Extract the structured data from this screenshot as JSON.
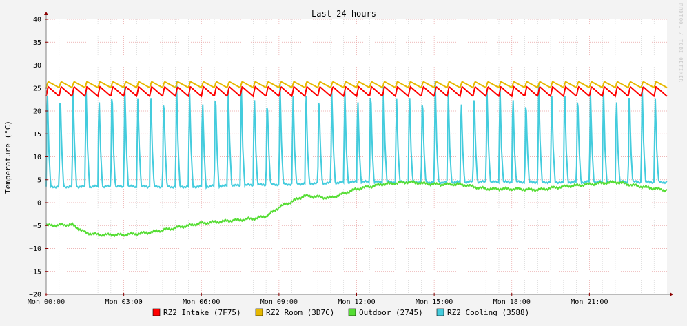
{
  "chart_data": {
    "type": "line",
    "title": "Last 24 hours",
    "ylabel": "Temperature (°C)",
    "xlabel": "",
    "watermark": "RRDTOOL / TOBI OETIKER",
    "ylim": [
      -20,
      40
    ],
    "y_ticks": [
      40,
      35,
      30,
      25,
      20,
      15,
      10,
      5,
      0,
      -5,
      -10,
      -15,
      -20
    ],
    "xlim": [
      "Mon 00:00",
      "Mon 24:00"
    ],
    "x_ticks": [
      "Mon 00:00",
      "Mon 03:00",
      "Mon 06:00",
      "Mon 09:00",
      "Mon 12:00",
      "Mon 15:00",
      "Mon 18:00",
      "Mon 21:00"
    ],
    "grid": true,
    "legend_position": "bottom",
    "colors": {
      "background": "#f3f3f3",
      "plot_background": "#ffffff",
      "grid_major": "#e8a0a0",
      "grid_minor": "#cccccc",
      "axis": "#808080",
      "arrow": "#8b0000"
    },
    "series": [
      {
        "name": "RZ2 Intake (7F75)",
        "color": "#ff0000",
        "pattern": "sawtooth",
        "period_h": 0.5,
        "min": 23.2,
        "max": 25.3,
        "hours": [
          0,
          6,
          12,
          18,
          24
        ],
        "values": [
          24,
          24,
          24,
          24,
          24
        ]
      },
      {
        "name": "RZ2 Room (3D7C)",
        "color": "#e6b800",
        "pattern": "sawtooth",
        "period_h": 0.5,
        "min": 25.1,
        "max": 26.4,
        "hours": [
          0,
          6,
          12,
          18,
          24
        ],
        "values": [
          25.8,
          25.8,
          25.8,
          25.8,
          25.8
        ]
      },
      {
        "name": "Outdoor (2745)",
        "color": "#55dd33",
        "pattern": "smooth",
        "hours": [
          0,
          1,
          1.5,
          2,
          3,
          4,
          5,
          6,
          7,
          8,
          8.5,
          9,
          10,
          11,
          12,
          13,
          14,
          15,
          16,
          17,
          18,
          19,
          20,
          21,
          22,
          23,
          24
        ],
        "values": [
          -5,
          -4.8,
          -6.5,
          -7,
          -7,
          -6.5,
          -5.5,
          -4.5,
          -4,
          -3.5,
          -3,
          -1,
          1.5,
          1,
          3,
          4,
          4.5,
          4,
          4,
          3,
          3,
          2.8,
          3.5,
          4,
          4.5,
          3.5,
          2.7
        ]
      },
      {
        "name": "RZ2 Cooling (3588)",
        "color": "#44ccdd",
        "pattern": "cycling",
        "period_h": 0.5,
        "min": 3.5,
        "max": 26.5,
        "hours": [
          0,
          6,
          12,
          18,
          24
        ],
        "values": [
          3.5,
          3.5,
          4.5,
          4.5,
          4.5
        ]
      }
    ]
  }
}
